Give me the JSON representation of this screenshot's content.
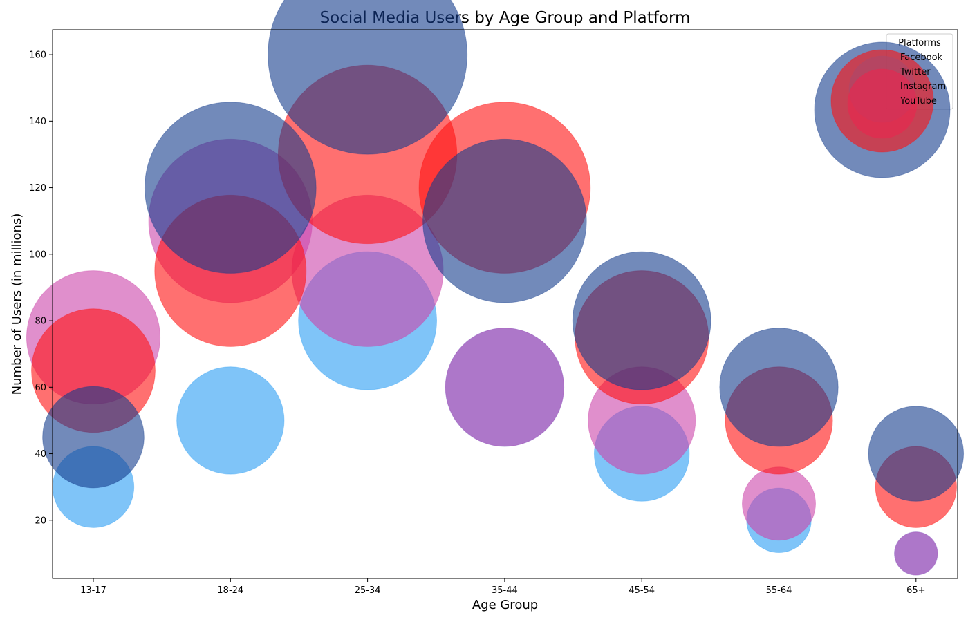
{
  "chart_data": {
    "type": "scatter",
    "title": "Social Media Users by Age Group and Platform",
    "xlabel": "Age Group",
    "ylabel": "Number of Users (in millions)",
    "categories": [
      "13-17",
      "18-24",
      "25-34",
      "35-44",
      "45-54",
      "55-64",
      "65+"
    ],
    "ylim": [
      2.5,
      167.5
    ],
    "yticks": [
      20,
      40,
      60,
      80,
      100,
      120,
      140,
      160
    ],
    "grid": false,
    "legend": {
      "title": "Platforms",
      "placement": "top-right"
    },
    "series": [
      {
        "name": "Facebook",
        "color": "#2a9df4",
        "values": [
          30,
          50,
          80,
          60,
          40,
          20,
          10
        ]
      },
      {
        "name": "Twitter",
        "color": "#cc44aa",
        "values": [
          75,
          110,
          95,
          60,
          50,
          25,
          10
        ]
      },
      {
        "name": "Instagram",
        "color": "#ff1111",
        "values": [
          65,
          95,
          130,
          120,
          75,
          50,
          30
        ]
      },
      {
        "name": "YouTube",
        "color": "#143c8c",
        "values": [
          45,
          120,
          160,
          110,
          80,
          60,
          40
        ]
      }
    ],
    "marker_size": "proportional to value"
  }
}
